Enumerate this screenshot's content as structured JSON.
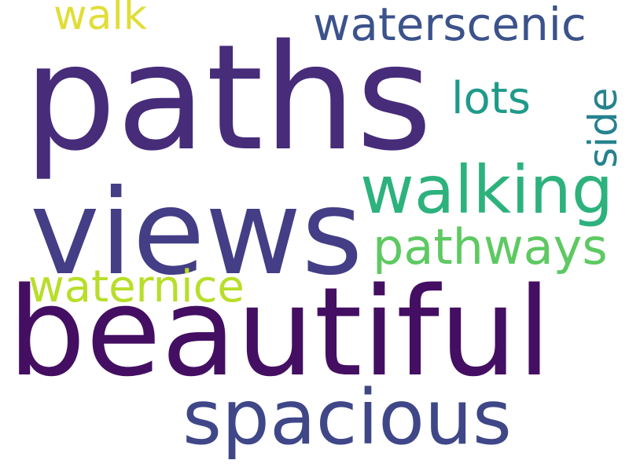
{
  "words": [
    {
      "text": "paths",
      "color": "#472c7a"
    },
    {
      "text": "views",
      "color": "#433e85"
    },
    {
      "text": "beautiful",
      "color": "#440f62"
    },
    {
      "text": "spacious",
      "color": "#3f4788"
    },
    {
      "text": "walking",
      "color": "#2db27d"
    },
    {
      "text": "pathways",
      "color": "#5ec962"
    },
    {
      "text": "waterscenic",
      "color": "#3b528b"
    },
    {
      "text": "lots",
      "color": "#1f9a8a"
    },
    {
      "text": "side",
      "color": "#26828e"
    },
    {
      "text": "waternice",
      "color": "#b8de29"
    },
    {
      "text": "walk",
      "color": "#e1dd37"
    }
  ]
}
